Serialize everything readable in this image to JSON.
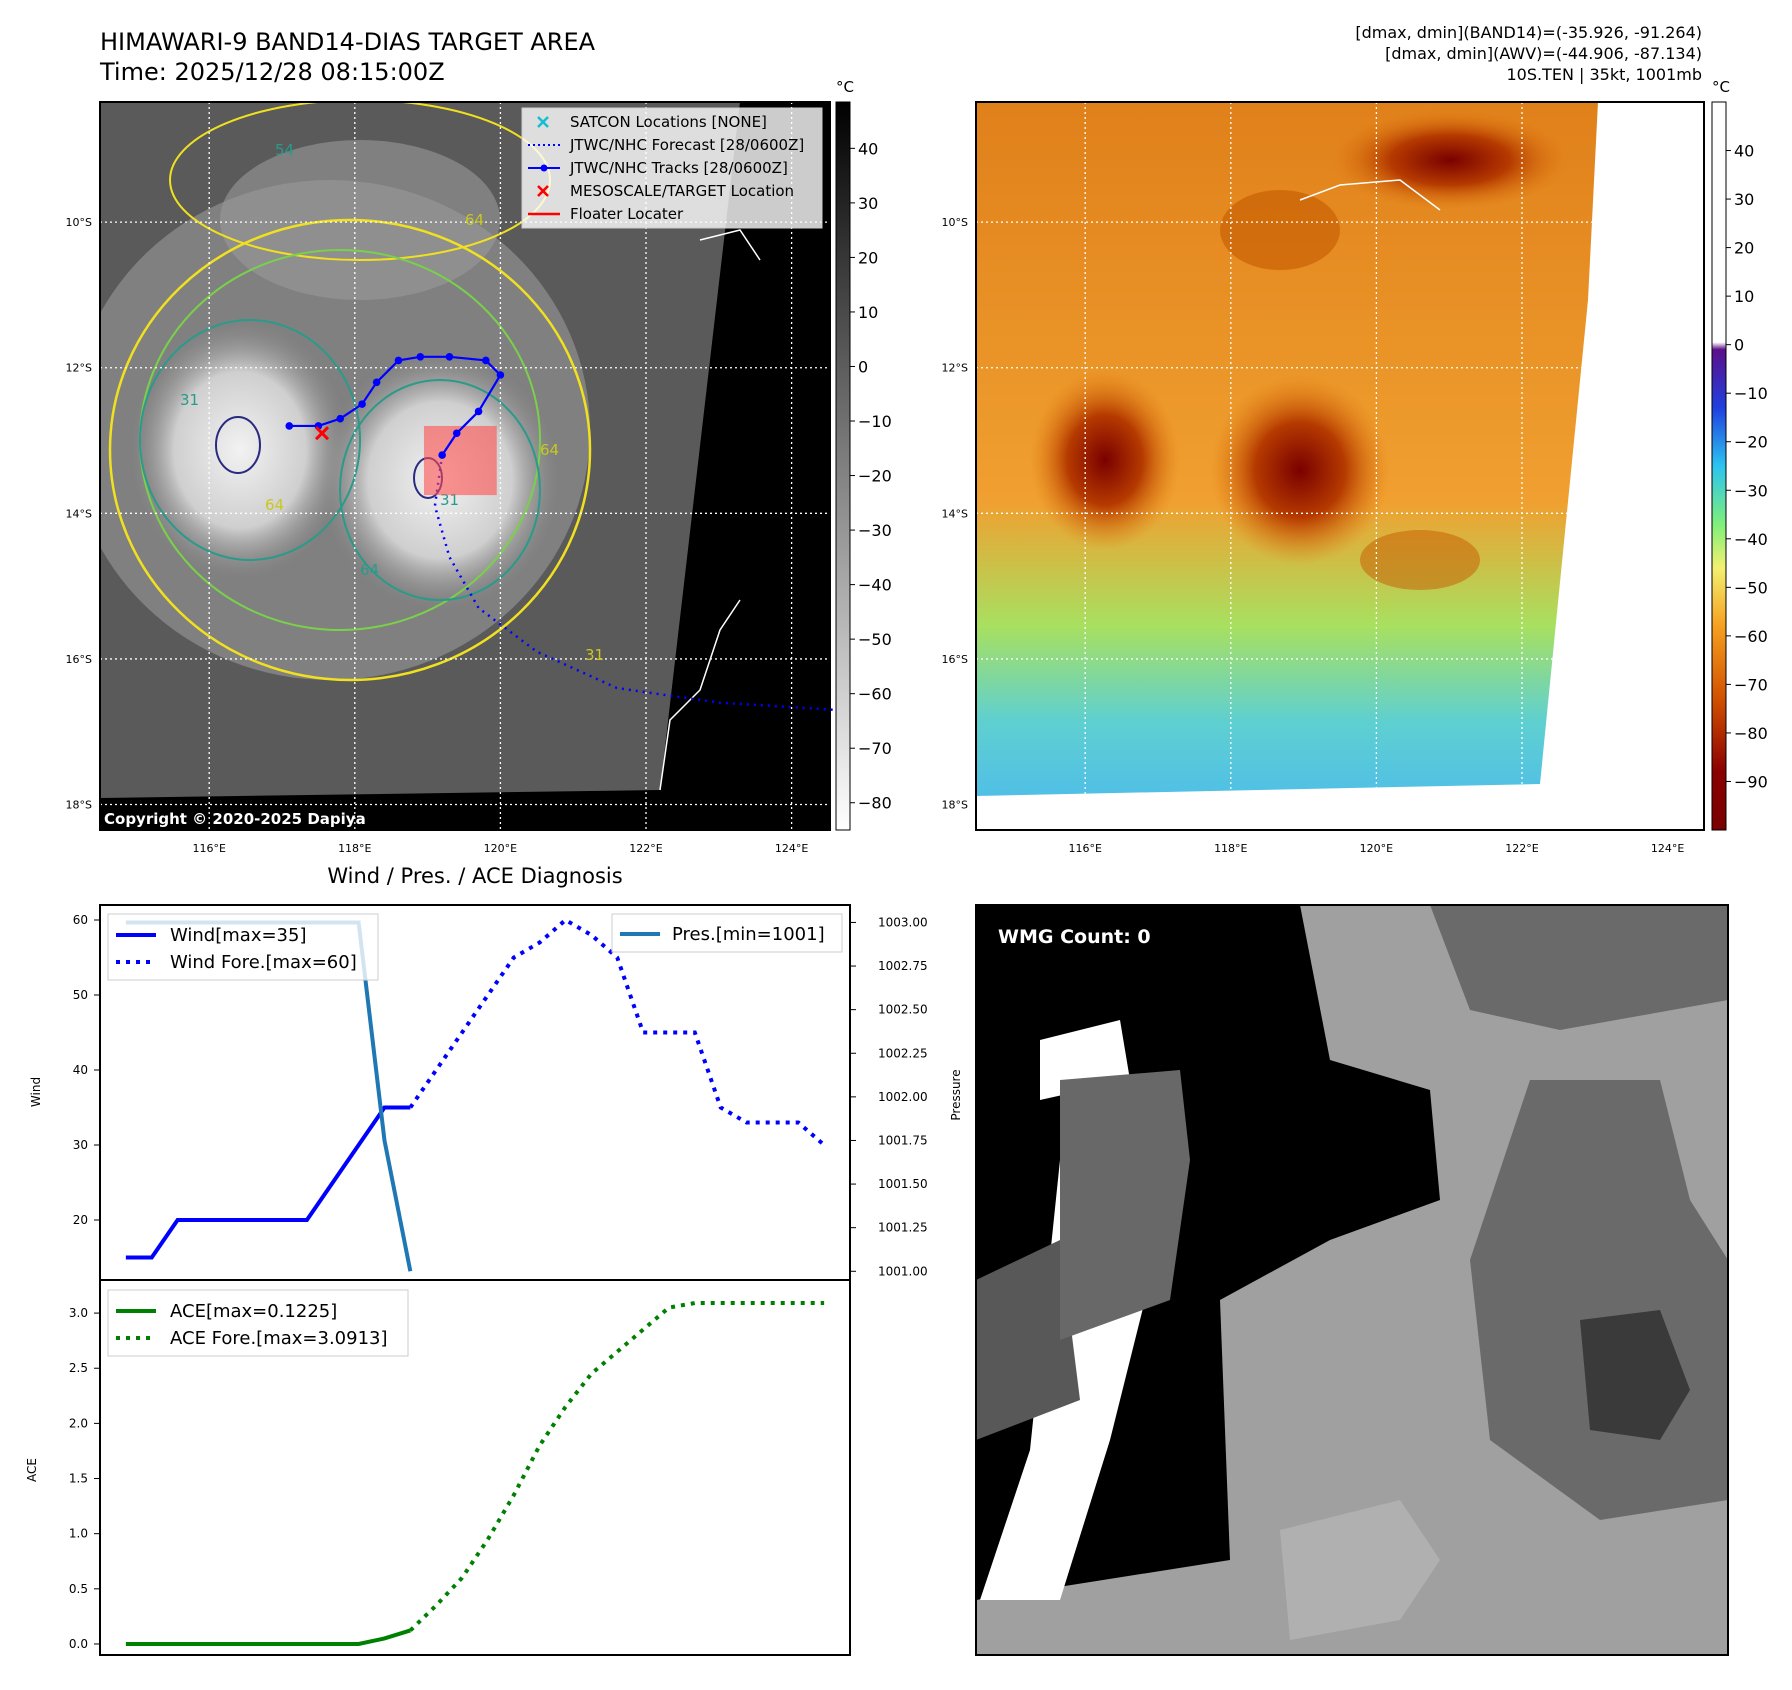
{
  "header": {
    "title_line1": "HIMAWARI-9 BAND14-DIAS TARGET AREA",
    "title_line2": "Time: 2025/12/28 08:15:00Z",
    "info_line1": "[dmax, dmin](BAND14)=(-35.926, -91.264)",
    "info_line2": "[dmax, dmin](AWV)=(-44.906, -87.134)",
    "info_line3": "10S.TEN | 35kt, 1001mb"
  },
  "map": {
    "lon_ticks": [
      "116°E",
      "118°E",
      "120°E",
      "122°E",
      "124°E"
    ],
    "lat_ticks": [
      "10°S",
      "12°S",
      "14°S",
      "16°S",
      "18°S"
    ],
    "contour_labels": [
      "54",
      "64",
      "31",
      "64",
      "31",
      "64",
      "64",
      "31"
    ],
    "copyright": "Copyright © 2020-2025 Dapiya",
    "unit": "°C",
    "colorbar_ticks_ir": [
      "40",
      "30",
      "20",
      "10",
      "0",
      "−10",
      "−20",
      "−30",
      "−40",
      "−50",
      "−60",
      "−70",
      "−80"
    ],
    "colorbar_ticks_awv": [
      "40",
      "30",
      "20",
      "10",
      "0",
      "−10",
      "−20",
      "−30",
      "−40",
      "−50",
      "−60",
      "−70",
      "−80",
      "−90"
    ],
    "legend": [
      {
        "label": "SATCON Locations [NONE]",
        "color": "#17becf",
        "marker": "x-marker"
      },
      {
        "label": "JTWC/NHC Forecast [28/0600Z]",
        "color": "#0000ff",
        "marker": "dotted-line"
      },
      {
        "label": "JTWC/NHC Tracks [28/0600Z]",
        "color": "#0000ff",
        "marker": "line-dot"
      },
      {
        "label": "MESOSCALE/TARGET Location",
        "color": "#ff0000",
        "marker": "x-marker"
      },
      {
        "label": "Floater Locater",
        "color": "#ff0000",
        "marker": "solid-line"
      }
    ],
    "track": [
      [
        117.1,
        -12.8
      ],
      [
        117.5,
        -12.8
      ],
      [
        117.8,
        -12.7
      ],
      [
        118.1,
        -12.5
      ],
      [
        118.3,
        -12.2
      ],
      [
        118.6,
        -11.9
      ],
      [
        118.9,
        -11.85
      ],
      [
        119.3,
        -11.85
      ],
      [
        119.8,
        -11.9
      ],
      [
        120.0,
        -12.1
      ],
      [
        119.7,
        -12.6
      ],
      [
        119.4,
        -12.9
      ],
      [
        119.2,
        -13.2
      ]
    ],
    "forecast": [
      [
        119.2,
        -13.2
      ],
      [
        119.1,
        -13.9
      ],
      [
        119.3,
        -14.6
      ],
      [
        119.7,
        -15.3
      ],
      [
        120.5,
        -15.9
      ],
      [
        121.6,
        -16.4
      ],
      [
        123.0,
        -16.6
      ],
      [
        124.6,
        -16.7
      ]
    ],
    "target_marker": [
      117.55,
      -12.9
    ],
    "floater_box": [
      [
        118.95,
        -12.8
      ],
      [
        119.95,
        -13.75
      ]
    ]
  },
  "chart_data": [
    {
      "type": "line",
      "title": "Wind / Pres. / ACE Diagnosis",
      "ylabel": "Wind",
      "y2label": "Pressure",
      "ylim": [
        12,
        62
      ],
      "y2lim": [
        1000.95,
        1003.1
      ],
      "yticks": [
        "20",
        "30",
        "40",
        "50",
        "60"
      ],
      "y2ticks": [
        "1001.00",
        "1001.25",
        "1001.50",
        "1001.75",
        "1002.00",
        "1002.25",
        "1002.50",
        "1002.75",
        "1003.00"
      ],
      "xlim": [
        -1,
        28
      ],
      "series": [
        {
          "name": "Wind[max=35]",
          "axis": "left",
          "style": "solid",
          "color": "#0000ff",
          "x": [
            0,
            1,
            2,
            3,
            4,
            5,
            6,
            7,
            8,
            9,
            10,
            11
          ],
          "values": [
            15,
            15,
            20,
            20,
            20,
            20,
            20,
            20,
            25,
            30,
            35,
            35
          ]
        },
        {
          "name": "Wind Fore.[max=60]",
          "axis": "left",
          "style": "dotted",
          "color": "#0000ff",
          "x": [
            11,
            12,
            13,
            14,
            15,
            16,
            17,
            18,
            19,
            20,
            21,
            22,
            23,
            24,
            25,
            26,
            27
          ],
          "values": [
            35,
            40,
            45,
            50,
            55,
            57,
            60,
            58,
            55,
            45,
            45,
            45,
            35,
            33,
            33,
            33,
            30
          ]
        },
        {
          "name": "Pres.[min=1001]",
          "axis": "right",
          "style": "solid",
          "color": "#1f77b4",
          "x": [
            0,
            1,
            2,
            3,
            4,
            5,
            6,
            7,
            8,
            9,
            10,
            11
          ],
          "values": [
            1003,
            1003,
            1003,
            1003,
            1003,
            1003,
            1003,
            1003,
            1003,
            1003,
            1001.75,
            1001
          ]
        }
      ]
    },
    {
      "type": "line",
      "ylabel": "ACE",
      "ylim": [
        -0.1,
        3.3
      ],
      "yticks": [
        "0.0",
        "0.5",
        "1.0",
        "1.5",
        "2.0",
        "2.5",
        "3.0"
      ],
      "xlim": [
        -1,
        28
      ],
      "series": [
        {
          "name": "ACE[max=0.1225]",
          "style": "solid",
          "color": "#008000",
          "x": [
            0,
            1,
            2,
            3,
            4,
            5,
            6,
            7,
            8,
            9,
            10,
            11
          ],
          "values": [
            0,
            0,
            0,
            0,
            0,
            0,
            0,
            0,
            0,
            0,
            0.05,
            0.1225
          ]
        },
        {
          "name": "ACE Fore.[max=3.0913]",
          "style": "dotted",
          "color": "#008000",
          "x": [
            11,
            12,
            13,
            14,
            15,
            16,
            17,
            18,
            19,
            20,
            21,
            22,
            23,
            24,
            25,
            26,
            27
          ],
          "values": [
            0.1225,
            0.35,
            0.6,
            0.95,
            1.35,
            1.8,
            2.15,
            2.45,
            2.65,
            2.85,
            3.05,
            3.0913,
            3.0913,
            3.0913,
            3.0913,
            3.0913,
            3.0913
          ]
        }
      ]
    }
  ],
  "wmg": {
    "label": "WMG Count: 0"
  }
}
